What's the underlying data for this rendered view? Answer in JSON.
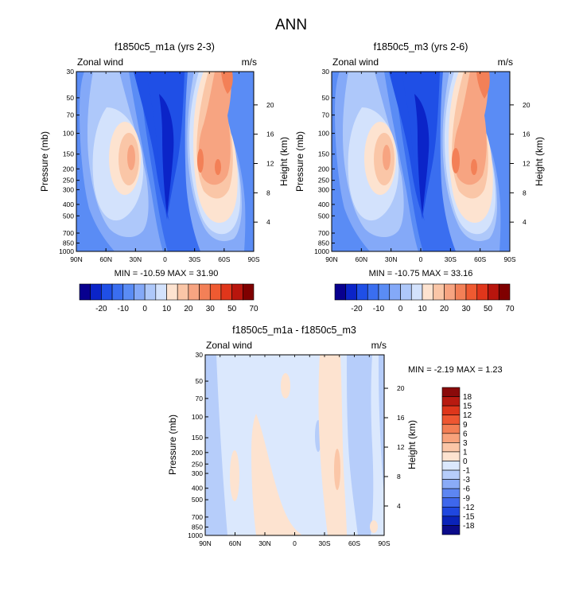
{
  "figure_title": "ANN",
  "colors": {
    "blue_palette": [
      "#08008f",
      "#0b24c8",
      "#1f4fe6",
      "#3a6ef0",
      "#5a8cf5",
      "#84a9f8",
      "#aec8fa",
      "#d3e2fc"
    ],
    "red_palette": [
      "#fde3d0",
      "#fac6a7",
      "#f7a481",
      "#f38057",
      "#ef5a31",
      "#e0361b",
      "#b8150d",
      "#7f0000"
    ],
    "diff_palette": [
      "#0b0b8a",
      "#0a23b9",
      "#1f47df",
      "#3e67ec",
      "#5d86f2",
      "#8aabf7",
      "#b6cdfa",
      "#dbe8fd",
      "#fde3d0",
      "#fbc6a7",
      "#f8a27b",
      "#f37e54",
      "#ee5631",
      "#de361b",
      "#b81a10",
      "#8a0a0a"
    ],
    "background": "#ffffff"
  },
  "chart_data": [
    {
      "type": "heatmap",
      "subtype": "filled-contour",
      "title": "f1850c5_m1a (yrs 2-3)",
      "left_label": "Zonal wind",
      "right_label": "m/s",
      "xlabel": "",
      "ylabel": "Pressure (mb)",
      "y2label": "Height (km)",
      "x_ticks": [
        "90N",
        "60N",
        "30N",
        "0",
        "30S",
        "60S",
        "90S"
      ],
      "y_ticks": [
        "30",
        "50",
        "70",
        "100",
        "150",
        "200",
        "250",
        "300",
        "400",
        "500",
        "700",
        "850",
        "1000"
      ],
      "y2_ticks": [
        "20",
        "16",
        "12",
        "8",
        "4"
      ],
      "xlim": [
        90,
        -90
      ],
      "ylim_mb": [
        1000,
        30
      ],
      "stats": "MIN = -10.59  MAX = 31.90",
      "min": -10.59,
      "max": 31.9,
      "colorbar_levels": [
        "-20",
        "-10",
        "0",
        "10",
        "20",
        "30",
        "50",
        "70"
      ],
      "colorbar_orientation": "horizontal"
    },
    {
      "type": "heatmap",
      "subtype": "filled-contour",
      "title": "f1850c5_m3 (yrs 2-6)",
      "left_label": "Zonal wind",
      "right_label": "m/s",
      "xlabel": "",
      "ylabel": "Pressure (mb)",
      "y2label": "Height (km)",
      "x_ticks": [
        "90N",
        "60N",
        "30N",
        "0",
        "30S",
        "60S",
        "90S"
      ],
      "y_ticks": [
        "30",
        "50",
        "70",
        "100",
        "150",
        "200",
        "250",
        "300",
        "400",
        "500",
        "700",
        "850",
        "1000"
      ],
      "y2_ticks": [
        "20",
        "16",
        "12",
        "8",
        "4"
      ],
      "xlim": [
        90,
        -90
      ],
      "ylim_mb": [
        1000,
        30
      ],
      "stats": "MIN = -10.75  MAX =  33.16",
      "min": -10.75,
      "max": 33.16,
      "colorbar_levels": [
        "-20",
        "-10",
        "0",
        "10",
        "20",
        "30",
        "50",
        "70"
      ],
      "colorbar_orientation": "horizontal"
    },
    {
      "type": "heatmap",
      "subtype": "filled-contour",
      "title": "f1850c5_m1a - f1850c5_m3",
      "left_label": "Zonal wind",
      "right_label": "m/s",
      "xlabel": "",
      "ylabel": "Pressure (mb)",
      "y2label": "Height (km)",
      "x_ticks": [
        "90N",
        "60N",
        "30N",
        "0",
        "30S",
        "60S",
        "90S"
      ],
      "y_ticks": [
        "30",
        "50",
        "70",
        "100",
        "150",
        "200",
        "250",
        "300",
        "400",
        "500",
        "700",
        "850",
        "1000"
      ],
      "y2_ticks": [
        "20",
        "16",
        "12",
        "8",
        "4"
      ],
      "xlim": [
        90,
        -90
      ],
      "ylim_mb": [
        1000,
        30
      ],
      "stats": "MIN =  -2.19  MAX =   1.23",
      "min": -2.19,
      "max": 1.23,
      "colorbar_levels": [
        "18",
        "15",
        "12",
        "9",
        "6",
        "3",
        "1",
        "0",
        "-1",
        "-3",
        "-6",
        "-9",
        "-12",
        "-15",
        "-18"
      ],
      "colorbar_orientation": "vertical"
    }
  ]
}
